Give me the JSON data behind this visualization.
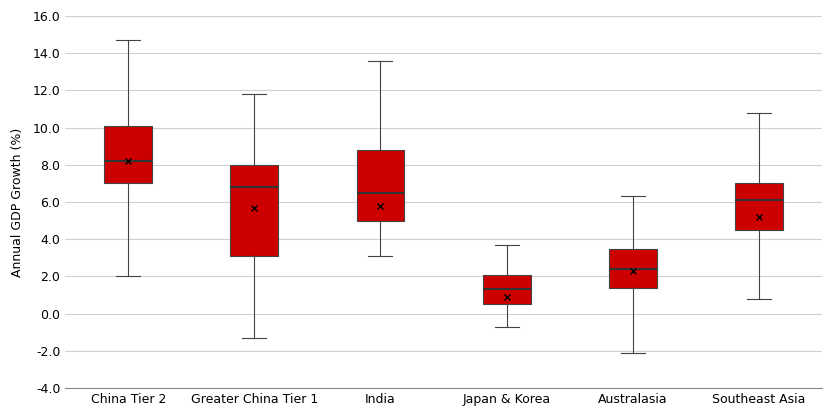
{
  "categories": [
    "China Tier 2",
    "Greater China Tier 1",
    "India",
    "Japan & Korea",
    "Australasia",
    "Southeast Asia"
  ],
  "boxes": [
    {
      "whislo": 2.0,
      "q1": 7.0,
      "med": 8.2,
      "q3": 10.1,
      "whishi": 14.7,
      "mean": 8.2
    },
    {
      "whislo": -1.3,
      "q1": 3.1,
      "med": 6.8,
      "q3": 8.0,
      "whishi": 11.8,
      "mean": 5.7
    },
    {
      "whislo": 3.1,
      "q1": 5.0,
      "med": 6.5,
      "q3": 8.8,
      "whishi": 13.6,
      "mean": 5.8
    },
    {
      "whislo": -0.7,
      "q1": 0.5,
      "med": 1.3,
      "q3": 2.1,
      "whishi": 3.7,
      "mean": 0.9
    },
    {
      "whislo": -2.1,
      "q1": 1.4,
      "med": 2.4,
      "q3": 3.5,
      "whishi": 6.3,
      "mean": 2.3
    },
    {
      "whislo": 0.8,
      "q1": 4.5,
      "med": 6.1,
      "q3": 7.0,
      "whishi": 10.8,
      "mean": 5.2
    }
  ],
  "box_color": "#cc0000",
  "box_edge_color": "#444444",
  "median_color": "#333333",
  "whisker_color": "#444444",
  "cap_color": "#444444",
  "mean_marker": "x",
  "mean_color": "black",
  "ylabel": "Annual GDP Growth (%)",
  "ylim": [
    -4.0,
    16.0
  ],
  "yticks": [
    -4.0,
    -2.0,
    0.0,
    2.0,
    4.0,
    6.0,
    8.0,
    10.0,
    12.0,
    14.0,
    16.0
  ],
  "background_color": "#ffffff",
  "grid_color": "#d0d0d0",
  "box_width": 0.38,
  "figsize": [
    8.33,
    4.17
  ],
  "dpi": 100
}
